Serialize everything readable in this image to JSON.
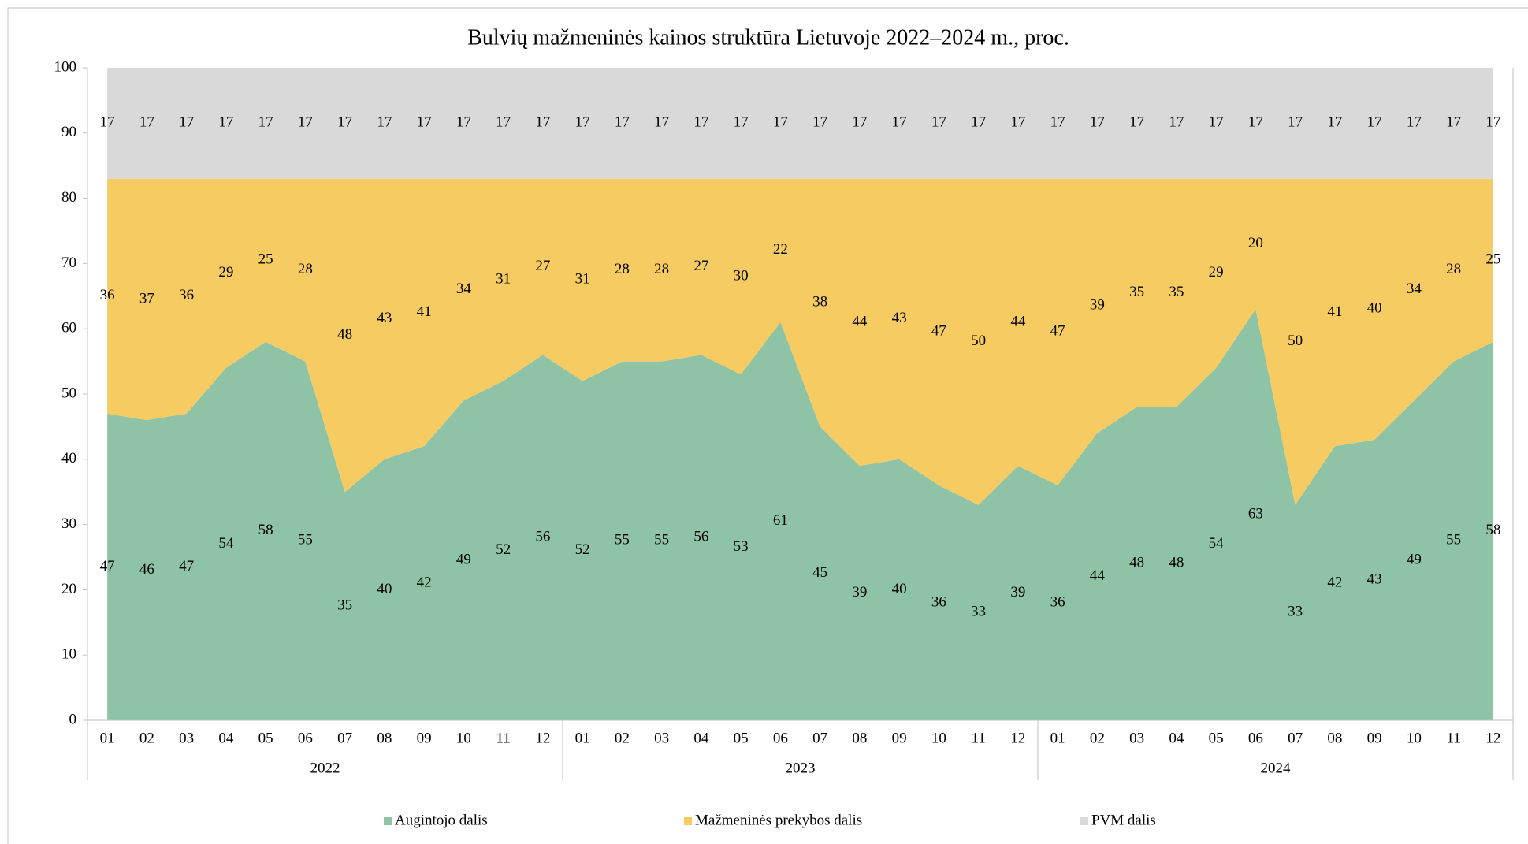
{
  "chart_data": {
    "type": "stacked_area",
    "title": "Bulvių mažmeninės kainos struktūra Lietuvoje 2022–2024 m., proc.",
    "categories": [
      "01",
      "02",
      "03",
      "04",
      "05",
      "06",
      "07",
      "08",
      "09",
      "10",
      "11",
      "12",
      "01",
      "02",
      "03",
      "04",
      "05",
      "06",
      "07",
      "08",
      "09",
      "10",
      "11",
      "12",
      "01",
      "02",
      "03",
      "04",
      "05",
      "06",
      "07",
      "08",
      "09",
      "10",
      "11",
      "12"
    ],
    "groups": [
      "2022",
      "2023",
      "2024"
    ],
    "series": [
      {
        "name": "Augintojo dalis",
        "color": "#8fc3a6",
        "values": [
          47,
          46,
          47,
          54,
          58,
          55,
          35,
          40,
          42,
          49,
          52,
          56,
          52,
          55,
          55,
          56,
          53,
          61,
          45,
          39,
          40,
          36,
          33,
          39,
          36,
          44,
          48,
          48,
          54,
          63,
          33,
          42,
          43,
          49,
          55,
          58
        ]
      },
      {
        "name": "Mažmeninės prekybos dalis",
        "color": "#f5cb62",
        "values": [
          36,
          37,
          36,
          29,
          25,
          28,
          48,
          43,
          41,
          34,
          31,
          27,
          31,
          28,
          28,
          27,
          30,
          22,
          38,
          44,
          43,
          47,
          50,
          44,
          47,
          39,
          35,
          35,
          29,
          20,
          50,
          41,
          40,
          34,
          28,
          25
        ]
      },
      {
        "name": "PVM dalis",
        "color": "#d9d9d9",
        "values": [
          17,
          17,
          17,
          17,
          17,
          17,
          17,
          17,
          17,
          17,
          17,
          17,
          17,
          17,
          17,
          17,
          17,
          17,
          17,
          17,
          17,
          17,
          17,
          17,
          17,
          17,
          17,
          17,
          17,
          17,
          17,
          17,
          17,
          17,
          17,
          17
        ]
      }
    ],
    "ylim": [
      0,
      100
    ],
    "yticks": [
      0,
      10,
      20,
      30,
      40,
      50,
      60,
      70,
      80,
      90,
      100
    ],
    "legend": "bottom"
  }
}
